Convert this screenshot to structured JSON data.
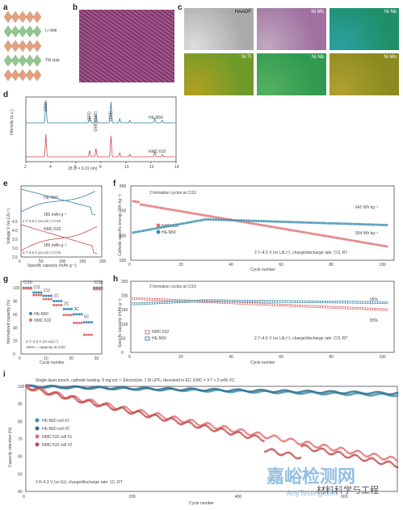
{
  "panels": {
    "a": {
      "letter": "a",
      "labels": [
        "Li slab",
        "TM slab"
      ]
    },
    "b": {
      "letter": "b"
    },
    "c": {
      "letter": "c",
      "tiles": [
        {
          "label": "HAADF",
          "colors": [
            "#aaaaaa",
            "#dddddd"
          ]
        },
        {
          "label": "Ni Mn",
          "colors": [
            "#a070a0",
            "#c0a8c0"
          ]
        },
        {
          "label": "Ni Nb",
          "colors": [
            "#1f8f6a",
            "#2aa0a0"
          ]
        },
        {
          "label": "Ni Ti",
          "colors": [
            "#6e9a2a",
            "#b2a020"
          ]
        },
        {
          "label": "Ni Nb",
          "colors": [
            "#2f9a50",
            "#56b060"
          ]
        },
        {
          "label": "Ni Mo",
          "colors": [
            "#8a8a20",
            "#b0a030"
          ]
        }
      ]
    },
    "d": {
      "letter": "d",
      "ylabel": "Intensity (a.u.)",
      "xlabel": "2θ (λ = 0.31 nm)",
      "peaks": [
        "(003)",
        "(101)",
        "(006)/(102)",
        "(104)"
      ],
      "series": [
        "HE-N50",
        "NMC-532"
      ]
    },
    "e": {
      "letter": "e",
      "ylabel": "Voltage V (vs Li/Li⁺)",
      "xlabel": "Specific capacity (mAh g⁻¹)",
      "ann1": "HE-N50",
      "ann2": "185 mAh g⁻¹",
      "ann3": "2.7–4.5 V (vs Li/Li⁺) C/10",
      "ann4": "NMC-532",
      "ann5": "189 mAh g⁻¹",
      "ann6": "2.7–4.5 V (vs Li/Li⁺) C/10"
    },
    "f": {
      "letter": "f",
      "ylabel": "Cathode specific energy (Wh kg⁻¹)",
      "xlabel": "Cycle number",
      "note": "2 formation cycles at C/10",
      "v1": "642 Wh kg⁻¹",
      "v2": "564 Wh kg⁻¹",
      "cond": "2.7–4.5 V (vs Li/Li⁺), charge/discharge rate: C/3, RT"
    },
    "g": {
      "letter": "g",
      "ylabel": "Normalized capacity (%)",
      "xlabel": "Cycle number",
      "rates": [
        "C/10",
        "C/3",
        "C/2",
        "1C",
        "2C",
        "3C",
        "5C",
        "C/10"
      ],
      "cond1": "2.7–4.5 V (vs Li/Li⁺)",
      "cond2": "100% = capacity at C/10"
    },
    "h": {
      "letter": "h",
      "ylabel": "Specific capacity (mAh g⁻¹)",
      "xlabel": "Cycle number",
      "note": "2 formation cycles at C/10",
      "r1": "95%",
      "r2": "83%",
      "cond": "2.7–4.5 V (vs Li/Li⁺), charge/discharge rate: C/3, RT"
    },
    "i": {
      "letter": "i",
      "ylabel": "Capacity retention (%)",
      "xlabel": "Cycle number",
      "title": "Single-layer pouch, cathode loading: 9 mg cm⁻². Electrolyte: 1 M LiPF₆ dissolved in EC: EMC = 3:7 + 2 wt% VC",
      "cond": "2.8–4.3 V (vs Gr), charge/discharge rate: 1C, RT"
    }
  },
  "legends": {
    "d": [
      "HE-N50",
      "NMC-532"
    ],
    "f": [
      "NMC-532",
      "HE-N50"
    ],
    "g": [
      "HE-N50",
      "NMC-532"
    ],
    "h": [
      "NMC-532",
      "HE-N50"
    ],
    "i": [
      "HE-N50 cell #1",
      "HE-N50 cell #2",
      "NMC-532 cell #1",
      "NMC-532 cell #2"
    ]
  },
  "watermark": {
    "cn1": "嘉峪检测网",
    "cn2": "材料科学与工程",
    "en": "AnyTesting.com"
  },
  "chart_data": [
    {
      "type": "line",
      "id": "d",
      "x_range": [
        2,
        14
      ],
      "x_ticks": [
        "2",
        "4",
        "6",
        "8",
        "10",
        "12",
        "14"
      ],
      "peaks_x": [
        3.6,
        7.1,
        7.6,
        8.8
      ],
      "series": [
        {
          "name": "HE-N50",
          "color": "#2f7f9f"
        },
        {
          "name": "NMC-532",
          "color": "#c94b4b"
        }
      ]
    },
    {
      "type": "line",
      "id": "e",
      "x_range": [
        0,
        200
      ],
      "y_range": [
        2.5,
        4.5
      ],
      "x_ticks": [
        "0",
        "50",
        "100",
        "150",
        "200"
      ],
      "y_ticks": [
        "2.5",
        "3.0",
        "3.5",
        "4.0",
        "4.5"
      ],
      "series": [
        {
          "name": "HE-N50",
          "capacity": 185
        },
        {
          "name": "NMC-532",
          "capacity": 189
        }
      ]
    },
    {
      "type": "scatter",
      "id": "f",
      "x_range": [
        0,
        105
      ],
      "y_range": [
        500,
        800
      ],
      "x_ticks": [
        "0",
        "20",
        "40",
        "60",
        "80",
        "100"
      ],
      "y_ticks": [
        "500",
        "600",
        "700",
        "800"
      ],
      "series": [
        {
          "name": "NMC-532",
          "start": 740,
          "end": 564,
          "color": "#e07070"
        },
        {
          "name": "HE-N50",
          "start": 610,
          "end": 642,
          "color": "#3f8fb0"
        }
      ]
    },
    {
      "type": "scatter",
      "id": "g",
      "x_range": [
        0,
        32
      ],
      "y_range": [
        0,
        110
      ],
      "x_ticks": [
        "0",
        "10",
        "20",
        "30"
      ],
      "y_ticks": [
        "0",
        "20",
        "40",
        "60",
        "80",
        "100"
      ],
      "series": [
        {
          "name": "HE-N50",
          "values": [
            100,
            93,
            88,
            80,
            68,
            60,
            48,
            100
          ]
        },
        {
          "name": "NMC-532",
          "values": [
            100,
            90,
            84,
            75,
            60,
            48,
            30,
            99
          ]
        }
      ]
    },
    {
      "type": "scatter",
      "id": "h",
      "x_range": [
        0,
        105
      ],
      "y_range": [
        0,
        250
      ],
      "x_ticks": [
        "0",
        "20",
        "40",
        "60",
        "80",
        "100"
      ],
      "y_ticks": [
        "0",
        "50",
        "100",
        "150",
        "200",
        "250"
      ],
      "series": [
        {
          "name": "NMC-532",
          "start": 190,
          "end": 150,
          "retention": "83%"
        },
        {
          "name": "HE-N50",
          "start": 170,
          "end": 175,
          "retention": "95%"
        }
      ]
    },
    {
      "type": "scatter",
      "id": "i",
      "x_range": [
        0,
        700
      ],
      "y_range": [
        40,
        100
      ],
      "x_ticks": [
        "0",
        "200",
        "400",
        "600"
      ],
      "y_ticks": [
        "40",
        "50",
        "60",
        "70",
        "80",
        "90",
        "100"
      ],
      "series": [
        {
          "name": "HE-N50 cell #1",
          "end": 95
        },
        {
          "name": "HE-N50 cell #2",
          "end": 96
        },
        {
          "name": "NMC-532 cell #1",
          "end": 58
        },
        {
          "name": "NMC-532 cell #2",
          "end": 55
        }
      ]
    }
  ]
}
